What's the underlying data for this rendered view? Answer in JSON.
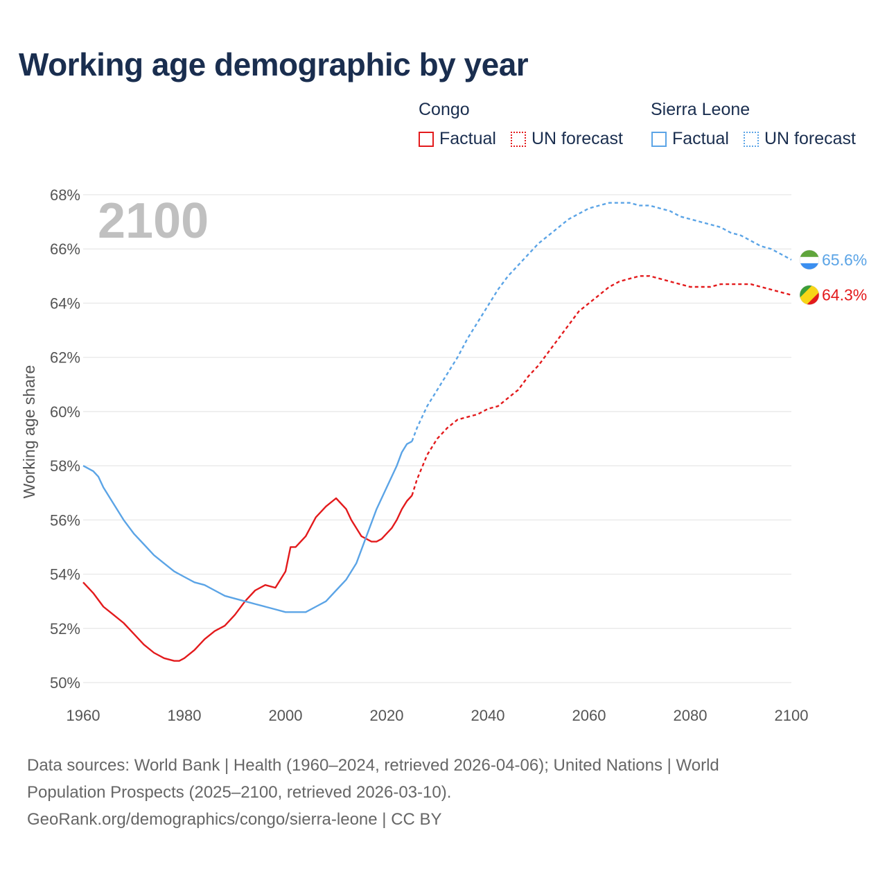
{
  "title": "Working age demographic by year",
  "legend": {
    "groups": [
      {
        "name": "Congo",
        "factual": "Factual",
        "forecast": "UN forecast",
        "color": "#e31a1c"
      },
      {
        "name": "Sierra Leone",
        "factual": "Factual",
        "forecast": "UN forecast",
        "color": "#5ba4e6"
      }
    ]
  },
  "year_label": "2100",
  "chart_data": {
    "type": "line",
    "ylabel": "Working age share",
    "xlabel": "",
    "xlim": [
      1960,
      2100
    ],
    "ylim": [
      50,
      68
    ],
    "x_ticks": [
      "1960",
      "1980",
      "2000",
      "2020",
      "2040",
      "2060",
      "2080",
      "2100"
    ],
    "y_ticks": [
      "50%",
      "52%",
      "54%",
      "56%",
      "58%",
      "60%",
      "62%",
      "64%",
      "66%",
      "68%"
    ],
    "factual_end_year": 2024,
    "series": [
      {
        "name": "Congo",
        "color": "#e31a1c",
        "end_label": "64.3%",
        "points": [
          [
            1960,
            53.7
          ],
          [
            1962,
            53.3
          ],
          [
            1964,
            52.8
          ],
          [
            1966,
            52.5
          ],
          [
            1968,
            52.2
          ],
          [
            1970,
            51.8
          ],
          [
            1972,
            51.4
          ],
          [
            1974,
            51.1
          ],
          [
            1976,
            50.9
          ],
          [
            1978,
            50.8
          ],
          [
            1979,
            50.8
          ],
          [
            1980,
            50.9
          ],
          [
            1982,
            51.2
          ],
          [
            1984,
            51.6
          ],
          [
            1986,
            51.9
          ],
          [
            1988,
            52.1
          ],
          [
            1990,
            52.5
          ],
          [
            1992,
            53.0
          ],
          [
            1994,
            53.4
          ],
          [
            1996,
            53.6
          ],
          [
            1998,
            53.5
          ],
          [
            2000,
            54.1
          ],
          [
            2001,
            55.0
          ],
          [
            2002,
            55.0
          ],
          [
            2004,
            55.4
          ],
          [
            2006,
            56.1
          ],
          [
            2008,
            56.5
          ],
          [
            2010,
            56.8
          ],
          [
            2012,
            56.4
          ],
          [
            2013,
            56.0
          ],
          [
            2015,
            55.4
          ],
          [
            2017,
            55.2
          ],
          [
            2018,
            55.2
          ],
          [
            2019,
            55.3
          ],
          [
            2021,
            55.7
          ],
          [
            2022,
            56.0
          ],
          [
            2023,
            56.4
          ],
          [
            2024,
            56.7
          ],
          [
            2025,
            56.9
          ],
          [
            2026,
            57.5
          ],
          [
            2028,
            58.4
          ],
          [
            2030,
            59.0
          ],
          [
            2032,
            59.4
          ],
          [
            2034,
            59.7
          ],
          [
            2036,
            59.8
          ],
          [
            2038,
            59.9
          ],
          [
            2040,
            60.1
          ],
          [
            2042,
            60.2
          ],
          [
            2044,
            60.5
          ],
          [
            2046,
            60.8
          ],
          [
            2048,
            61.3
          ],
          [
            2050,
            61.7
          ],
          [
            2052,
            62.2
          ],
          [
            2054,
            62.7
          ],
          [
            2056,
            63.2
          ],
          [
            2058,
            63.7
          ],
          [
            2060,
            64.0
          ],
          [
            2062,
            64.3
          ],
          [
            2064,
            64.6
          ],
          [
            2066,
            64.8
          ],
          [
            2068,
            64.9
          ],
          [
            2070,
            65.0
          ],
          [
            2072,
            65.0
          ],
          [
            2074,
            64.9
          ],
          [
            2076,
            64.8
          ],
          [
            2078,
            64.7
          ],
          [
            2080,
            64.6
          ],
          [
            2082,
            64.6
          ],
          [
            2084,
            64.6
          ],
          [
            2086,
            64.7
          ],
          [
            2088,
            64.7
          ],
          [
            2090,
            64.7
          ],
          [
            2092,
            64.7
          ],
          [
            2094,
            64.6
          ],
          [
            2096,
            64.5
          ],
          [
            2098,
            64.4
          ],
          [
            2100,
            64.3
          ]
        ]
      },
      {
        "name": "Sierra Leone",
        "color": "#5ba4e6",
        "end_label": "65.6%",
        "points": [
          [
            1960,
            58.0
          ],
          [
            1962,
            57.8
          ],
          [
            1963,
            57.6
          ],
          [
            1964,
            57.2
          ],
          [
            1966,
            56.6
          ],
          [
            1968,
            56.0
          ],
          [
            1970,
            55.5
          ],
          [
            1972,
            55.1
          ],
          [
            1974,
            54.7
          ],
          [
            1976,
            54.4
          ],
          [
            1978,
            54.1
          ],
          [
            1980,
            53.9
          ],
          [
            1982,
            53.7
          ],
          [
            1984,
            53.6
          ],
          [
            1986,
            53.4
          ],
          [
            1988,
            53.2
          ],
          [
            1990,
            53.1
          ],
          [
            1992,
            53.0
          ],
          [
            1994,
            52.9
          ],
          [
            1996,
            52.8
          ],
          [
            1998,
            52.7
          ],
          [
            2000,
            52.6
          ],
          [
            2002,
            52.6
          ],
          [
            2004,
            52.6
          ],
          [
            2006,
            52.8
          ],
          [
            2008,
            53.0
          ],
          [
            2010,
            53.4
          ],
          [
            2012,
            53.8
          ],
          [
            2014,
            54.4
          ],
          [
            2016,
            55.4
          ],
          [
            2018,
            56.4
          ],
          [
            2020,
            57.2
          ],
          [
            2022,
            58.0
          ],
          [
            2023,
            58.5
          ],
          [
            2024,
            58.8
          ],
          [
            2025,
            58.9
          ],
          [
            2026,
            59.4
          ],
          [
            2028,
            60.2
          ],
          [
            2030,
            60.8
          ],
          [
            2032,
            61.4
          ],
          [
            2034,
            62.0
          ],
          [
            2036,
            62.7
          ],
          [
            2038,
            63.3
          ],
          [
            2040,
            63.9
          ],
          [
            2042,
            64.5
          ],
          [
            2044,
            65.0
          ],
          [
            2046,
            65.4
          ],
          [
            2048,
            65.8
          ],
          [
            2050,
            66.2
          ],
          [
            2052,
            66.5
          ],
          [
            2054,
            66.8
          ],
          [
            2056,
            67.1
          ],
          [
            2058,
            67.3
          ],
          [
            2060,
            67.5
          ],
          [
            2062,
            67.6
          ],
          [
            2064,
            67.7
          ],
          [
            2066,
            67.7
          ],
          [
            2068,
            67.7
          ],
          [
            2070,
            67.6
          ],
          [
            2072,
            67.6
          ],
          [
            2074,
            67.5
          ],
          [
            2076,
            67.4
          ],
          [
            2078,
            67.2
          ],
          [
            2080,
            67.1
          ],
          [
            2082,
            67.0
          ],
          [
            2084,
            66.9
          ],
          [
            2086,
            66.8
          ],
          [
            2088,
            66.6
          ],
          [
            2090,
            66.5
          ],
          [
            2092,
            66.3
          ],
          [
            2094,
            66.1
          ],
          [
            2096,
            66.0
          ],
          [
            2098,
            65.8
          ],
          [
            2100,
            65.6
          ]
        ]
      }
    ]
  },
  "footer": {
    "line1": "Data sources: World Bank | Health (1960–2024, retrieved 2026-04-06); United Nations | World",
    "line2": "Population Prospects (2025–2100, retrieved 2026-03-10).",
    "line3": "GeoRank.org/demographics/congo/sierra-leone | CC BY"
  }
}
